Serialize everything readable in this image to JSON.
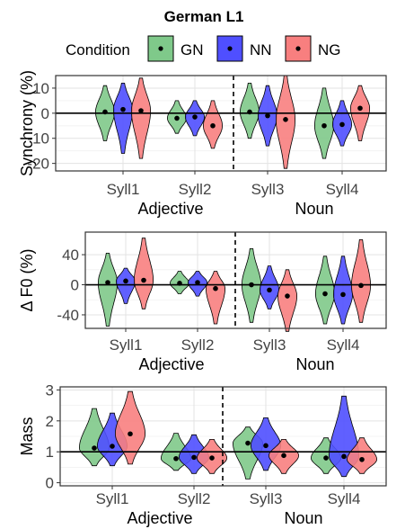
{
  "figure": {
    "title": "German L1",
    "legend": {
      "title": "Condition",
      "entries": [
        {
          "name": "GN",
          "color": "#7fc98a"
        },
        {
          "name": "NN",
          "color": "#4f4fff"
        },
        {
          "name": "NG",
          "color": "#f87f7f"
        }
      ]
    }
  },
  "chart_data": [
    {
      "type": "violin",
      "ylabel": "Synchrony (%)",
      "ylim": [
        -23,
        15
      ],
      "yticks": [
        10,
        0,
        -10,
        -20
      ],
      "hline": 0,
      "categories": [
        "Syll1",
        "Syll2",
        "Syll3",
        "Syll4"
      ],
      "groups": [
        "Adjective",
        "Noun"
      ],
      "series": [
        {
          "name": "GN",
          "means": [
            0.5,
            -2,
            0.5,
            -5
          ],
          "ranges": [
            [
              -11,
              11
            ],
            [
              -8,
              5
            ],
            [
              -10,
              12
            ],
            [
              -18,
              10
            ]
          ]
        },
        {
          "name": "NN",
          "means": [
            1.5,
            -1.5,
            -1,
            -4.5
          ],
          "ranges": [
            [
              -16,
              12
            ],
            [
              -9,
              5
            ],
            [
              -13,
              11
            ],
            [
              -13,
              5
            ]
          ]
        },
        {
          "name": "NG",
          "means": [
            1,
            -5,
            -2.5,
            2
          ],
          "ranges": [
            [
              -18,
              14
            ],
            [
              -14,
              5
            ],
            [
              -22,
              15
            ],
            [
              -11,
              11
            ]
          ]
        }
      ]
    },
    {
      "type": "violin",
      "ylabel": "Δ F0 (%)",
      "ylim": [
        -58,
        70
      ],
      "yticks": [
        40,
        0,
        -40
      ],
      "hline": 0,
      "categories": [
        "Syll1",
        "Syll2",
        "Syll3",
        "Syll4"
      ],
      "groups": [
        "Adjective",
        "Noun"
      ],
      "series": [
        {
          "name": "GN",
          "means": [
            3,
            2,
            0,
            -12
          ],
          "ranges": [
            [
              -55,
              42
            ],
            [
              -12,
              18
            ],
            [
              -50,
              48
            ],
            [
              -52,
              38
            ]
          ]
        },
        {
          "name": "NN",
          "means": [
            5,
            3,
            -7,
            -13
          ],
          "ranges": [
            [
              -25,
              22
            ],
            [
              -15,
              18
            ],
            [
              -32,
              25
            ],
            [
              -52,
              38
            ]
          ]
        },
        {
          "name": "NG",
          "means": [
            6,
            -5,
            -15,
            -1
          ],
          "ranges": [
            [
              -32,
              62
            ],
            [
              -52,
              18
            ],
            [
              -62,
              20
            ],
            [
              -50,
              60
            ]
          ]
        }
      ]
    },
    {
      "type": "violin",
      "ylabel": "Mass",
      "ylim": [
        -0.1,
        3.1
      ],
      "yticks": [
        3,
        2,
        1,
        0
      ],
      "hline": 1,
      "categories": [
        "Syll1",
        "Syll2",
        "Syll3",
        "Syll4"
      ],
      "groups": [
        "Adjective",
        "Noun"
      ],
      "series": [
        {
          "name": "GN",
          "means": [
            1.12,
            0.78,
            1.28,
            0.8
          ],
          "ranges": [
            [
              0.55,
              2.4
            ],
            [
              0.4,
              1.6
            ],
            [
              0.12,
              1.8
            ],
            [
              0.3,
              1.45
            ]
          ]
        },
        {
          "name": "NN",
          "means": [
            1.18,
            0.82,
            1.2,
            0.85
          ],
          "ranges": [
            [
              0.55,
              2.25
            ],
            [
              0.3,
              1.55
            ],
            [
              0.4,
              2.1
            ],
            [
              0.2,
              2.8
            ]
          ]
        },
        {
          "name": "NG",
          "means": [
            1.58,
            0.8,
            0.88,
            0.75
          ],
          "ranges": [
            [
              0.6,
              2.95
            ],
            [
              0.3,
              1.4
            ],
            [
              0.3,
              1.4
            ],
            [
              0.3,
              1.45
            ]
          ]
        }
      ]
    }
  ]
}
